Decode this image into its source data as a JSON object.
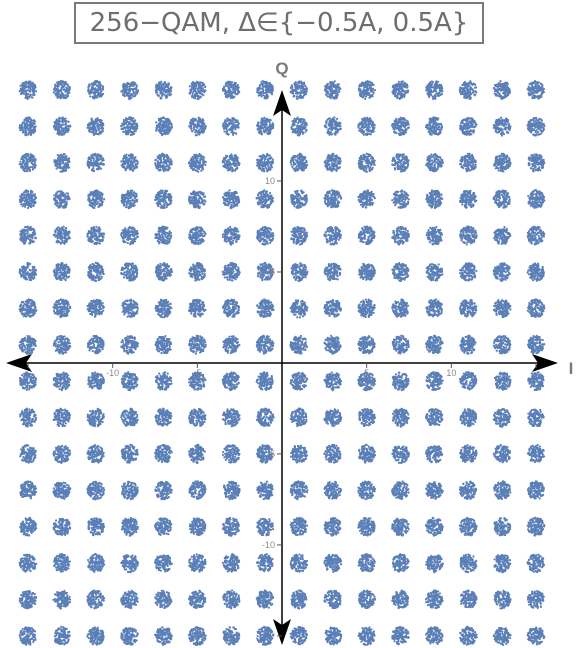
{
  "chart_data": {
    "type": "scatter",
    "title": "256−QAM, Δ∈{−0.5A, 0.5A}",
    "xlabel": "I",
    "ylabel": "Q",
    "xlim": [
      -16.3,
      16.3
    ],
    "ylim": [
      -15.5,
      15.0
    ],
    "grid": false,
    "x_levels": [
      -15,
      -13,
      -11,
      -9,
      -7,
      -5,
      -3,
      -1,
      1,
      3,
      5,
      7,
      9,
      11,
      13,
      15
    ],
    "y_levels": [
      -15,
      -13,
      -11,
      -9,
      -7,
      -5,
      -3,
      -1,
      1,
      3,
      5,
      7,
      9,
      11,
      13,
      15
    ],
    "point_cloud_spread": 0.5,
    "x_ticks": [
      -15,
      -10,
      -5,
      5,
      10,
      15
    ],
    "x_tick_labels": [
      "",
      "-10",
      "-5",
      "5",
      "10",
      ""
    ],
    "y_ticks": [
      -15,
      -10,
      -5,
      5,
      10
    ],
    "y_tick_labels": [
      "",
      "-10",
      "-5",
      "5",
      "10"
    ],
    "marker_color": "#5b7fb7"
  }
}
